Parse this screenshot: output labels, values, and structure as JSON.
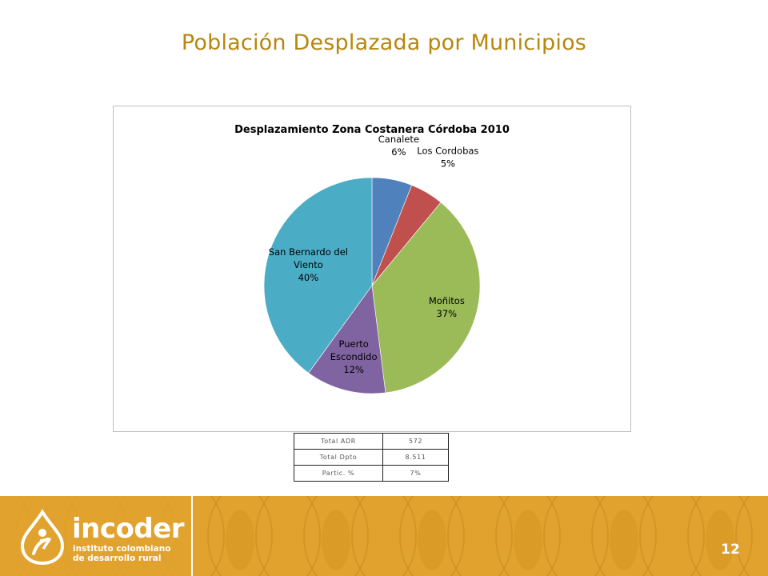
{
  "slide": {
    "title": "Población Desplazada por Municipios",
    "page_number": "12"
  },
  "chart_data": {
    "type": "pie",
    "title": "Desplazamiento Zona Costanera Córdoba 2010",
    "categories": [
      "Canalete",
      "Los Cordobas",
      "Moñitos",
      "Puerto Escondido",
      "San Bernardo del Viento"
    ],
    "values": [
      6,
      5,
      37,
      12,
      40
    ],
    "value_labels": [
      "6%",
      "5%",
      "37%",
      "12%",
      "40%"
    ],
    "label_lines": [
      [
        "Canalete",
        "6%"
      ],
      [
        "Los Cordobas",
        "5%"
      ],
      [
        "Moñitos",
        "37%"
      ],
      [
        "Puerto",
        "Escondido",
        "12%"
      ],
      [
        "San Bernardo del",
        "Viento",
        "40%"
      ]
    ],
    "colors": [
      "#4f81bd",
      "#c0504d",
      "#9bbb59",
      "#8064a2",
      "#4bacc6"
    ],
    "start": "12 o'clock, clockwise",
    "legend": "none"
  },
  "summary_table": {
    "rows": [
      {
        "label": "Total ADR",
        "value": "572"
      },
      {
        "label": "Total Dpto",
        "value": "8.511"
      },
      {
        "label": "Partic. %",
        "value": "7%"
      }
    ]
  },
  "footer": {
    "brand": "incoder",
    "tagline": "instituto colombiano de desarrollo rural",
    "background_color": "#e1a32e"
  }
}
